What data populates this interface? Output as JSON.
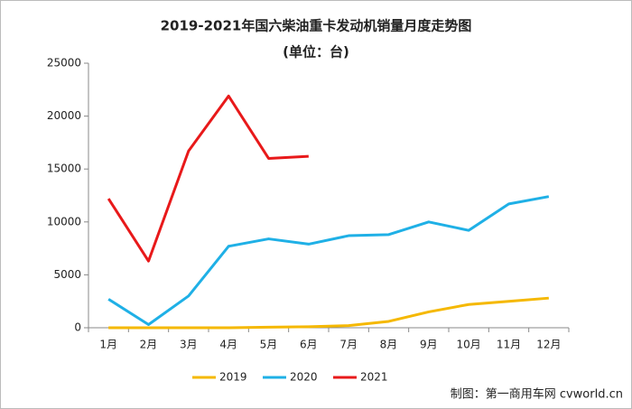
{
  "chart_data": {
    "type": "line",
    "title": "2019-2021年国六柴油重卡发动机销量月度走势图",
    "subtitle": "(单位：台)",
    "source": "制图：第一商用车网 cvworld.cn",
    "categories": [
      "1月",
      "2月",
      "3月",
      "4月",
      "5月",
      "6月",
      "7月",
      "8月",
      "9月",
      "10月",
      "11月",
      "12月"
    ],
    "series": [
      {
        "name": "2019",
        "color": "#f5b800",
        "values": [
          0,
          0,
          0,
          0,
          50,
          100,
          200,
          600,
          1500,
          2200,
          2500,
          2800
        ]
      },
      {
        "name": "2020",
        "color": "#1fb0e6",
        "values": [
          2700,
          300,
          3000,
          7700,
          8400,
          7900,
          8700,
          8800,
          10000,
          9200,
          11700,
          12400
        ]
      },
      {
        "name": "2021",
        "color": "#e8191a",
        "values": [
          12200,
          6300,
          16700,
          21900,
          16000,
          16200,
          null,
          null,
          null,
          null,
          null,
          null
        ]
      }
    ],
    "ylim": [
      0,
      25000
    ],
    "yticks": [
      0,
      5000,
      10000,
      15000,
      20000,
      25000
    ],
    "grid": false,
    "legend": "bottom"
  }
}
